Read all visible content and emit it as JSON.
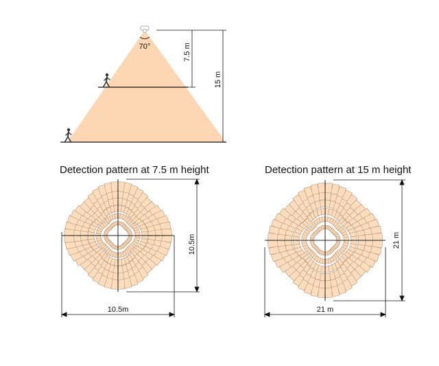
{
  "side_view": {
    "angle_label": "70°",
    "dim_upper": "7.5 m",
    "dim_full": "15 m"
  },
  "patterns": [
    {
      "title": "Detection pattern at 7.5 m height",
      "width_label": "10.5m",
      "height_label": "10.5m"
    },
    {
      "title": "Detection pattern at 15 m height",
      "width_label": "21 m",
      "height_label": "21 m"
    }
  ],
  "colors": {
    "cone": "#fdd7b4",
    "zone_fill": "#fbdcbc",
    "zone_stroke": "#b08a6a",
    "line": "#111111"
  }
}
